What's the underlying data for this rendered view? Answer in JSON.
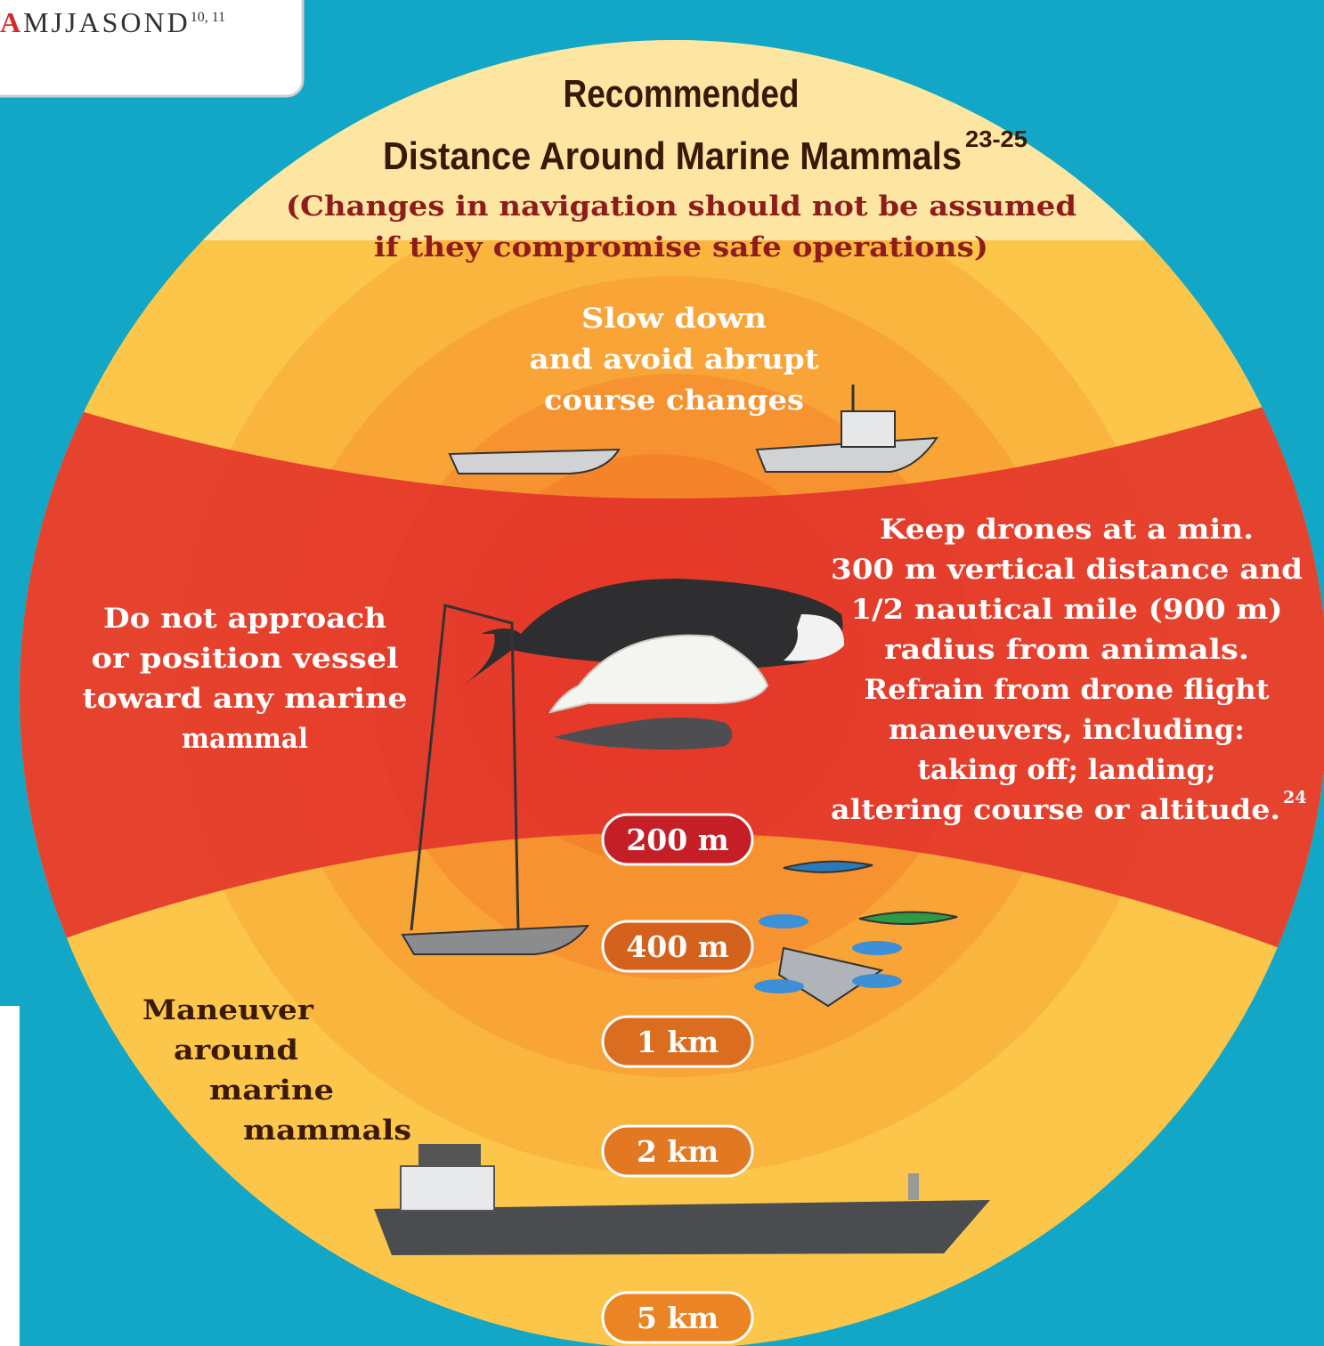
{
  "calendar_strip": {
    "highlight": "A",
    "rest": "MJJASOND",
    "ref": "10, 11"
  },
  "title": {
    "lines": [
      "Recommended",
      "Distance Around Marine Mammals"
    ],
    "ref": "23-25"
  },
  "subtitle": {
    "lines": [
      "(Changes in navigation should not be assumed",
      "if they compromise safe operations)"
    ]
  },
  "zones": {
    "slow_down": {
      "lines": [
        "Slow down",
        "and avoid abrupt",
        "course changes"
      ]
    },
    "do_not_approach": {
      "lines": [
        "Do not approach",
        "or position vessel",
        "toward any marine",
        "mammal"
      ]
    },
    "drones": {
      "lines": [
        "Keep drones at a min.",
        "300 m vertical distance and",
        "1/2 nautical mile (900 m)",
        "radius from animals.",
        "Refrain from drone flight",
        "maneuvers, including:",
        "taking off; landing;",
        "altering course or altitude."
      ],
      "ref": "24"
    },
    "maneuver": {
      "lines": [
        "Maneuver",
        "around",
        "marine",
        "mammals"
      ]
    }
  },
  "distances": [
    "200 m",
    "400 m",
    "1 km",
    "2 km",
    "5 km"
  ]
}
